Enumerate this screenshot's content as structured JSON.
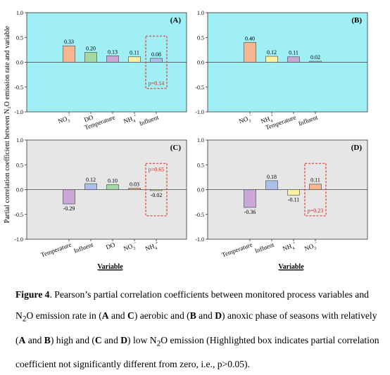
{
  "ylabel": "Partial correlation coefficient between N₂O emission rate and variable",
  "xlabel": "Variable",
  "panel_colors": {
    "top": "#9feff5",
    "bottom": "#e6e6e6"
  },
  "chart_data": [
    {
      "type": "bar",
      "panel_label": "(A)",
      "categories": [
        "NO3-",
        "DO",
        "Temperature",
        "NH4+",
        "Influent"
      ],
      "values": [
        0.33,
        0.2,
        0.13,
        0.11,
        0.08
      ],
      "value_labels": [
        "0.33",
        "0.20",
        "0.13",
        "0.11",
        "0.08"
      ],
      "colors": [
        "#f7b68e",
        "#a3d9a3",
        "#c9a8d7",
        "#fbf2a0",
        "#a9c0ec"
      ],
      "ylim": [
        -1.0,
        1.0
      ],
      "yticks": [
        "1.0",
        "0.5",
        "0.0",
        "-0.5",
        "-1.0"
      ],
      "highlight": {
        "category_index": 4,
        "p_label": "p=0.14",
        "p_position": "bottom"
      }
    },
    {
      "type": "bar",
      "panel_label": "(B)",
      "categories": [
        "NO3-",
        "NH4+",
        "Temperature",
        "Influent"
      ],
      "values": [
        0.4,
        0.12,
        0.11,
        0.02
      ],
      "value_labels": [
        "0.40",
        "0.12",
        "0.11",
        "0.02"
      ],
      "colors": [
        "#f7b68e",
        "#fbf2a0",
        "#c9a8d7",
        "#a9c0ec"
      ],
      "ylim": [
        -1.0,
        1.0
      ],
      "yticks": [
        "1.0",
        "0.5",
        "0.0",
        "-0.5",
        "-1.0"
      ],
      "highlight": null
    },
    {
      "type": "bar",
      "panel_label": "(C)",
      "categories": [
        "Temperature",
        "Influent",
        "DO",
        "NO3-",
        "NH4+"
      ],
      "values": [
        -0.29,
        0.12,
        0.1,
        0.03,
        -0.02
      ],
      "value_labels": [
        "-0.29",
        "0.12",
        "0.10",
        "0.03",
        "-0.02"
      ],
      "colors": [
        "#c9a8d7",
        "#a9c0ec",
        "#a3d9a3",
        "#f7b68e",
        "#fbf2a0"
      ],
      "ylim": [
        -1.0,
        1.0
      ],
      "yticks": [
        "1.0",
        "0.5",
        "0.0",
        "-0.5",
        "-1.0"
      ],
      "highlight": {
        "category_index": 4,
        "p_label": "p=0.65",
        "p_position": "top"
      }
    },
    {
      "type": "bar",
      "panel_label": "(D)",
      "categories": [
        "Temperature",
        "Influent",
        "NH4+",
        "NO3-"
      ],
      "values": [
        -0.36,
        0.18,
        -0.11,
        0.11
      ],
      "value_labels": [
        "-0.36",
        "0.18",
        "-0.11",
        "0.11"
      ],
      "colors": [
        "#c9a8d7",
        "#a9c0ec",
        "#fbf2a0",
        "#f7b68e"
      ],
      "ylim": [
        -1.0,
        1.0
      ],
      "yticks": [
        "1.0",
        "0.5",
        "0.0",
        "-0.5",
        "-1.0"
      ],
      "highlight": {
        "category_index": 3,
        "p_label": "p=0.23",
        "p_position": "bottom"
      }
    }
  ],
  "caption": {
    "segments": [
      {
        "t": "Figure 4",
        "b": true
      },
      {
        "t": ". Pearson’s partial correlation coefficients between monitored process variables and N"
      },
      {
        "t": "2",
        "sub": true
      },
      {
        "t": "O emission rate in ("
      },
      {
        "t": "A",
        "b": true
      },
      {
        "t": " and "
      },
      {
        "t": "C",
        "b": true
      },
      {
        "t": ") aerobic and ("
      },
      {
        "t": "B",
        "b": true
      },
      {
        "t": " and "
      },
      {
        "t": "D",
        "b": true
      },
      {
        "t": ") anoxic phase of seasons with relatively ("
      },
      {
        "t": "A",
        "b": true
      },
      {
        "t": " and "
      },
      {
        "t": "B",
        "b": true
      },
      {
        "t": ") high and ("
      },
      {
        "t": "C",
        "b": true
      },
      {
        "t": " and "
      },
      {
        "t": "D",
        "b": true
      },
      {
        "t": ") low N"
      },
      {
        "t": "2",
        "sub": true
      },
      {
        "t": "O emission (Highlighted box indicates partial correlation coefficient not significantly different from zero, i.e., p>0.05)."
      }
    ]
  }
}
